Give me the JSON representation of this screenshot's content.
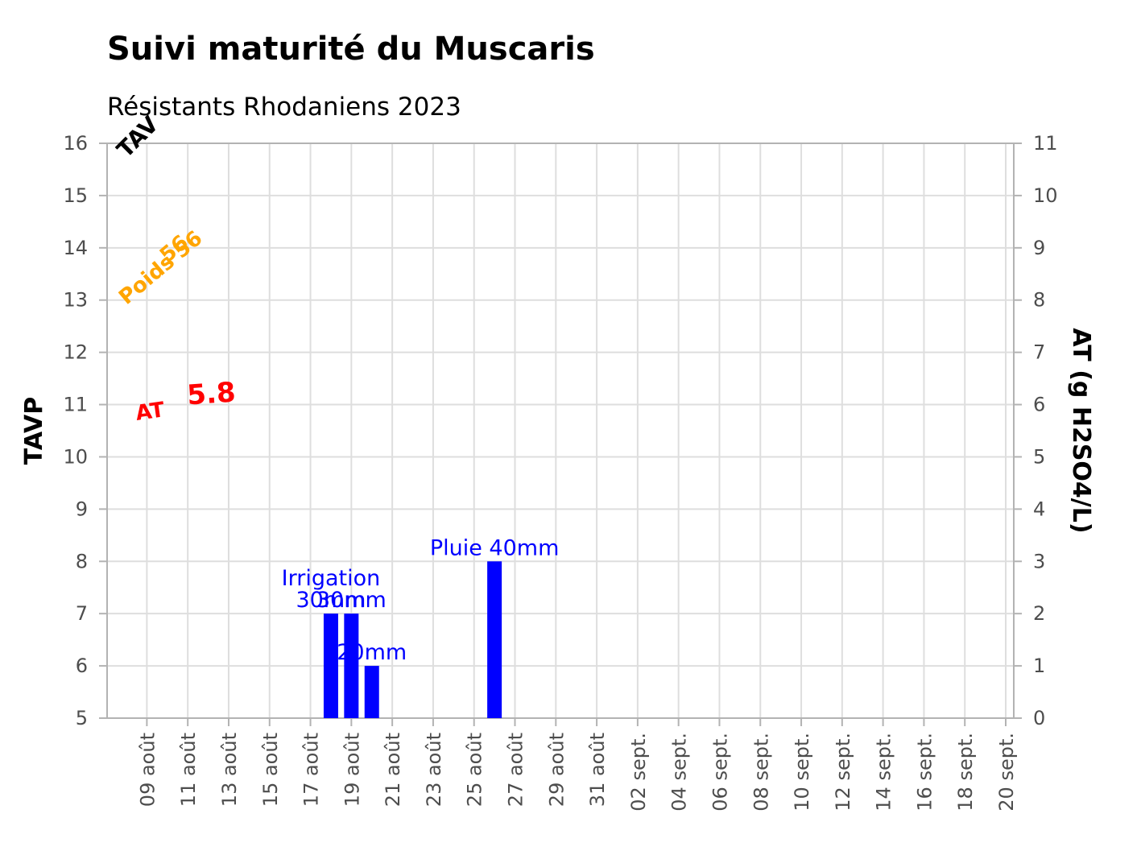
{
  "chart_data": {
    "type": "bar",
    "title": "Suivi maturité du Muscaris",
    "subtitle": "Résistants Rhodaniens 2023",
    "ylabel": "TAVP",
    "y2label": "AT (g H2SO4/L)",
    "ylim": [
      5,
      16
    ],
    "y2lim": [
      0,
      11
    ],
    "yticks": [
      5,
      6,
      7,
      8,
      9,
      10,
      11,
      12,
      13,
      14,
      15,
      16
    ],
    "y2ticks": [
      0,
      1,
      2,
      3,
      4,
      5,
      6,
      7,
      8,
      9,
      10,
      11
    ],
    "xlim": [
      "2023-08-08",
      "2023-09-20"
    ],
    "xticks": [
      {
        "date": "2023-08-09",
        "label": "09 août"
      },
      {
        "date": "2023-08-11",
        "label": "11 août"
      },
      {
        "date": "2023-08-13",
        "label": "13 août"
      },
      {
        "date": "2023-08-15",
        "label": "15 août"
      },
      {
        "date": "2023-08-17",
        "label": "17 août"
      },
      {
        "date": "2023-08-19",
        "label": "19 août"
      },
      {
        "date": "2023-08-21",
        "label": "21 août"
      },
      {
        "date": "2023-08-23",
        "label": "23 août"
      },
      {
        "date": "2023-08-25",
        "label": "25 août"
      },
      {
        "date": "2023-08-27",
        "label": "27 août"
      },
      {
        "date": "2023-08-29",
        "label": "29 août"
      },
      {
        "date": "2023-08-31",
        "label": "31 août"
      },
      {
        "date": "2023-09-02",
        "label": "02 sept."
      },
      {
        "date": "2023-09-04",
        "label": "04 sept."
      },
      {
        "date": "2023-09-06",
        "label": "06 sept."
      },
      {
        "date": "2023-09-08",
        "label": "08 sept."
      },
      {
        "date": "2023-09-10",
        "label": "10 sept."
      },
      {
        "date": "2023-09-12",
        "label": "12 sept."
      },
      {
        "date": "2023-09-14",
        "label": "14 sept."
      },
      {
        "date": "2023-09-16",
        "label": "16 sept."
      },
      {
        "date": "2023-09-18",
        "label": "18 sept."
      },
      {
        "date": "2023-09-20",
        "label": "20 sept."
      }
    ],
    "bars": [
      {
        "date": "2023-08-18",
        "value": 7,
        "labels": [
          "Irrigation",
          "30mm"
        ]
      },
      {
        "date": "2023-08-19",
        "value": 7,
        "labels": [
          "30mm"
        ]
      },
      {
        "date": "2023-08-20",
        "value": 6,
        "labels": [
          "20mm"
        ]
      },
      {
        "date": "2023-08-26",
        "value": 8,
        "labels": [
          "Pluie 40mm"
        ]
      }
    ],
    "bar_color": "#0000ff",
    "annotations": [
      {
        "text": "TAV",
        "date": "2023-08-08",
        "y": 15.7,
        "color": "#000000",
        "angle": -45,
        "weight": "bold",
        "size": 28
      },
      {
        "text": "Poids 56",
        "date": "2023-08-08",
        "y": 12.9,
        "color": "#ffa500",
        "angle": -40,
        "weight": "bold",
        "size": 26
      },
      {
        "text": "56",
        "date": "2023-08-10",
        "y": 13.7,
        "color": "#ffa500",
        "angle": -40,
        "weight": "bold",
        "size": 26
      },
      {
        "text": "AT",
        "date": "2023-08-08.5",
        "y": 10.7,
        "color": "#ff0000",
        "angle": -8,
        "weight": "bold",
        "size": 26
      },
      {
        "text": "5.8",
        "date": "2023-08-11",
        "y": 11.0,
        "color": "#ff0000",
        "angle": -4,
        "weight": "bold",
        "size": 34
      }
    ]
  }
}
